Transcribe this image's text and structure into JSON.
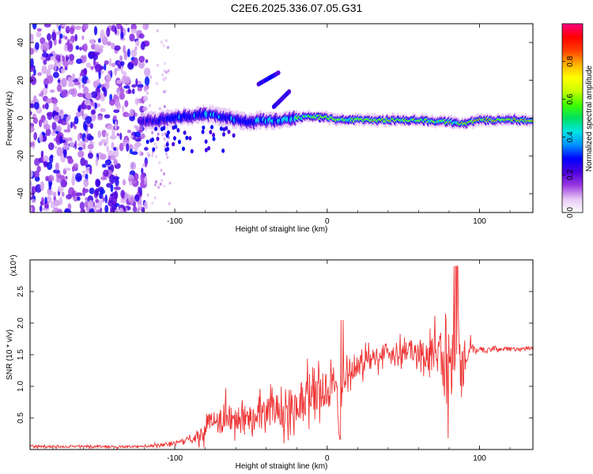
{
  "title": "C2E6.2025.336.07.05.G31",
  "chart_data": [
    {
      "type": "heatmap",
      "name": "spectrogram",
      "xlabel": "Height of straight line (km)",
      "ylabel": "Frequency (Hz)",
      "xlim": [
        -195,
        135
      ],
      "ylim": [
        -50,
        50
      ],
      "xticks": [
        -100,
        0,
        100
      ],
      "xtick_labels": [
        "-100",
        "0",
        "100"
      ],
      "yticks": [
        -40,
        -20,
        0,
        20,
        40
      ],
      "ytick_labels": [
        "-40",
        "-20",
        "0",
        "20",
        "40"
      ],
      "colorbar": {
        "label": "Normalized spectral amplitude",
        "range": [
          0,
          1
        ],
        "ticks": [
          0.0,
          0.2,
          0.4,
          0.6,
          0.8
        ],
        "tick_labels": [
          "0.0",
          "0.2",
          "0.4",
          "0.6",
          "0.8"
        ],
        "colors": [
          "#ffffff",
          "#e6c8f5",
          "#9b3ae0",
          "#4b00e0",
          "#0000ff",
          "#0090ff",
          "#00e5e5",
          "#00e060",
          "#40ff00",
          "#c8ff00",
          "#ffff00",
          "#ffb000",
          "#ff4000",
          "#ff0000",
          "#ff0080"
        ]
      },
      "noise_region_x": [
        -195,
        -118
      ],
      "signal_track": {
        "x": [
          -120,
          -110,
          -100,
          -90,
          -80,
          -70,
          -60,
          -50,
          -40,
          -30,
          -20,
          -10,
          0,
          10,
          20,
          40,
          60,
          80,
          90,
          100,
          110,
          120,
          135
        ],
        "freq": [
          -2,
          -1,
          0,
          1,
          2,
          1,
          -1,
          -2,
          -1,
          -1,
          0,
          1,
          0,
          -1,
          -1,
          -1,
          -1,
          -2,
          -3,
          -1,
          -1,
          -1,
          -1
        ],
        "amplitude": [
          0.2,
          0.25,
          0.3,
          0.3,
          0.35,
          0.35,
          0.3,
          0.3,
          0.35,
          0.4,
          0.55,
          0.6,
          0.7,
          0.55,
          0.6,
          0.7,
          0.6,
          0.6,
          0.75,
          0.85,
          0.85,
          0.85,
          0.85
        ]
      },
      "harmonic_streak": {
        "x": [
          -45,
          -32
        ],
        "freq": [
          18,
          24
        ]
      },
      "harmonic_streak2": {
        "x": [
          -35,
          -25
        ],
        "freq": [
          6,
          14
        ]
      }
    },
    {
      "type": "line",
      "name": "snr",
      "xlabel": "Height of straight line (km)",
      "ylabel": "SNR (10 * v/v)",
      "y_multiplier": "(x10⁴)",
      "xlim": [
        -195,
        135
      ],
      "ylim": [
        0,
        3.0
      ],
      "xticks": [
        -100,
        0,
        100
      ],
      "xtick_labels": [
        "-100",
        "0",
        "100"
      ],
      "yticks": [
        0.5,
        1.0,
        1.5,
        2.0,
        2.5
      ],
      "ytick_labels": [
        "0.5",
        "1.0",
        "1.5",
        "2.0",
        "2.5"
      ],
      "line_color": "#ee3333",
      "series": {
        "name": "SNR",
        "x": [
          -195,
          -180,
          -160,
          -140,
          -120,
          -110,
          -100,
          -90,
          -82,
          -78,
          -74,
          -70,
          -66,
          -62,
          -58,
          -54,
          -50,
          -46,
          -42,
          -38,
          -34,
          -30,
          -26,
          -22,
          -18,
          -14,
          -10,
          -6,
          -2,
          2,
          6,
          8,
          10,
          14,
          18,
          22,
          26,
          30,
          34,
          38,
          42,
          46,
          50,
          54,
          58,
          62,
          66,
          70,
          74,
          76,
          78,
          80,
          82,
          84,
          86,
          88,
          90,
          92,
          94,
          96,
          98,
          100,
          104,
          108,
          112,
          116,
          120,
          126,
          130,
          135
        ],
        "y": [
          0.05,
          0.04,
          0.05,
          0.04,
          0.05,
          0.07,
          0.1,
          0.15,
          0.25,
          0.4,
          0.5,
          0.45,
          0.55,
          0.5,
          0.55,
          0.55,
          0.5,
          0.6,
          0.55,
          0.6,
          0.65,
          0.6,
          0.65,
          0.7,
          0.75,
          0.9,
          1.0,
          0.95,
          0.85,
          1.1,
          1.0,
          0.3,
          1.1,
          1.2,
          1.3,
          1.35,
          1.4,
          1.45,
          1.5,
          1.55,
          1.5,
          1.6,
          1.55,
          1.6,
          1.5,
          1.6,
          1.45,
          1.55,
          1.6,
          1.3,
          1.9,
          1.0,
          1.6,
          1.2,
          1.8,
          1.0,
          1.5,
          1.2,
          1.4,
          1.6,
          1.55,
          1.6,
          1.55,
          1.6,
          1.58,
          1.6,
          1.6,
          1.58,
          1.6,
          1.6
        ],
        "noise_amplitude": [
          0.02,
          0.02,
          0.02,
          0.02,
          0.02,
          0.03,
          0.05,
          0.08,
          0.15,
          0.2,
          0.25,
          0.25,
          0.3,
          0.3,
          0.3,
          0.3,
          0.3,
          0.3,
          0.3,
          0.3,
          0.3,
          0.35,
          0.35,
          0.35,
          0.4,
          0.45,
          0.45,
          0.4,
          0.35,
          0.35,
          0.3,
          0.2,
          0.3,
          0.25,
          0.25,
          0.2,
          0.2,
          0.2,
          0.2,
          0.2,
          0.2,
          0.2,
          0.2,
          0.2,
          0.2,
          0.25,
          0.3,
          0.35,
          0.5,
          0.6,
          0.7,
          0.8,
          0.7,
          0.7,
          0.6,
          0.6,
          0.5,
          0.4,
          0.3,
          0.1,
          0.05,
          0.05,
          0.05,
          0.04,
          0.04,
          0.04,
          0.04,
          0.04,
          0.04,
          0.04
        ]
      }
    }
  ]
}
